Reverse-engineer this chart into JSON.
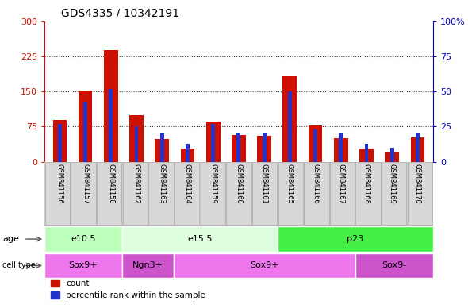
{
  "title": "GDS4335 / 10342191",
  "samples": [
    "GSM841156",
    "GSM841157",
    "GSM841158",
    "GSM841162",
    "GSM841163",
    "GSM841164",
    "GSM841159",
    "GSM841160",
    "GSM841161",
    "GSM841165",
    "GSM841166",
    "GSM841167",
    "GSM841168",
    "GSM841169",
    "GSM841170"
  ],
  "counts": [
    90,
    152,
    238,
    100,
    48,
    28,
    85,
    57,
    55,
    182,
    78,
    50,
    28,
    20,
    52
  ],
  "percentiles": [
    27,
    43,
    52,
    25,
    20,
    13,
    27,
    20,
    20,
    50,
    23,
    20,
    13,
    10,
    20
  ],
  "age_groups": [
    {
      "label": "e10.5",
      "start": 0,
      "end": 3,
      "color": "#bbffbb"
    },
    {
      "label": "e15.5",
      "start": 3,
      "end": 9,
      "color": "#ddffdd"
    },
    {
      "label": "p23",
      "start": 9,
      "end": 15,
      "color": "#44ee44"
    }
  ],
  "cell_type_groups": [
    {
      "label": "Sox9+",
      "start": 0,
      "end": 3,
      "color": "#ee77ee"
    },
    {
      "label": "Ngn3+",
      "start": 3,
      "end": 5,
      "color": "#cc55cc"
    },
    {
      "label": "Sox9+",
      "start": 5,
      "end": 12,
      "color": "#ee77ee"
    },
    {
      "label": "Sox9-",
      "start": 12,
      "end": 15,
      "color": "#cc55cc"
    }
  ],
  "ylim_left": [
    0,
    300
  ],
  "ylim_right": [
    0,
    100
  ],
  "yticks_left": [
    0,
    75,
    150,
    225,
    300
  ],
  "yticks_right": [
    0,
    25,
    50,
    75,
    100
  ],
  "bar_color_red": "#cc1100",
  "bar_color_blue": "#2233cc",
  "bg_color": "#ffffff",
  "plot_bg": "#ffffff",
  "grid_color": "#333333",
  "tick_color_left": "#cc1100",
  "tick_color_right": "#0000bb",
  "title_fontsize": 10,
  "red_bar_width": 0.55,
  "blue_bar_width": 0.15
}
